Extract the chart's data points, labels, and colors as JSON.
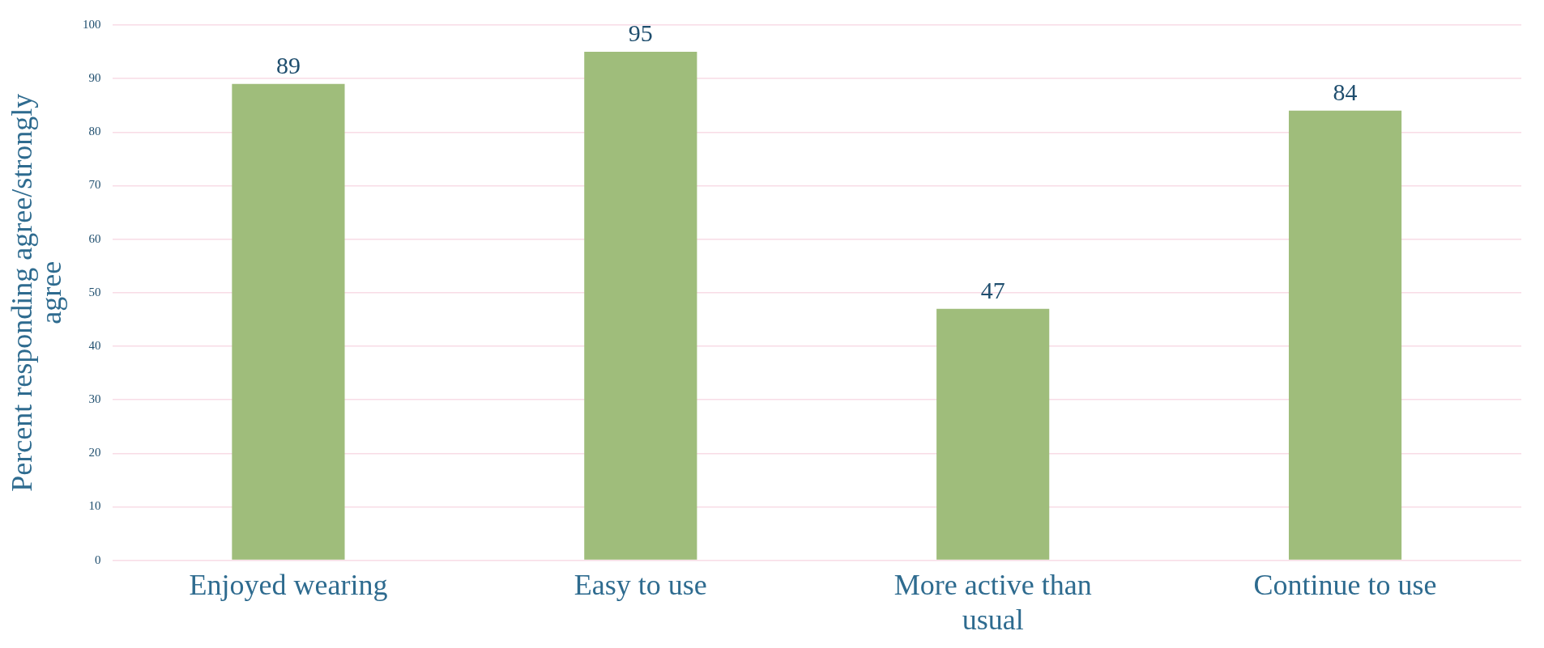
{
  "chart_data": {
    "type": "bar",
    "ylabel": "Percent responding agree/strongly agree",
    "categories": [
      "Enjoyed wearing",
      "Easy to use",
      "More active than usual",
      "Continue to use"
    ],
    "values": [
      89,
      95,
      47,
      84
    ],
    "color": "#9fbd7b",
    "ylim": [
      0,
      100
    ],
    "yticks": [
      0,
      10,
      20,
      30,
      40,
      50,
      60,
      70,
      80,
      90,
      100
    ],
    "grid": "y",
    "data_labels": true,
    "legend": false
  }
}
